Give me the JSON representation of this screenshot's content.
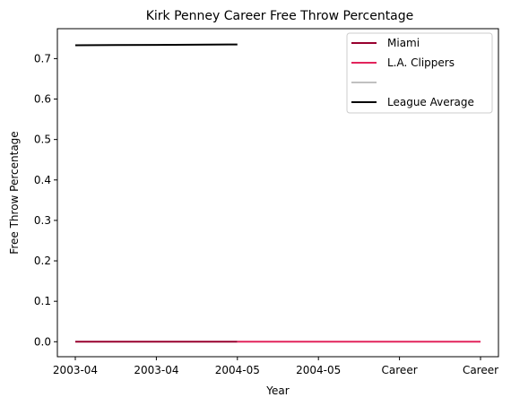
{
  "chart_data": {
    "type": "line",
    "title": "Kirk Penney Career Free Throw Percentage",
    "xlabel": "Year",
    "ylabel": "Free Throw Percentage",
    "x_tick_labels": [
      "2003-04",
      "2003-04",
      "2004-05",
      "2004-05",
      "Career",
      "Career"
    ],
    "ylim": [
      -0.037,
      0.774
    ],
    "y_ticks": [
      0.0,
      0.1,
      0.2,
      0.3,
      0.4,
      0.5,
      0.6,
      0.7
    ],
    "y_tick_labels": [
      "0.0",
      "0.1",
      "0.2",
      "0.3",
      "0.4",
      "0.5",
      "0.6",
      "0.7"
    ],
    "grid": false,
    "legend_position": "top-right",
    "series": [
      {
        "name": "Miami",
        "color": "#98002e",
        "x": [
          0,
          1,
          2
        ],
        "y": [
          0.0,
          0.0,
          0.0
        ]
      },
      {
        "name": "L.A. Clippers",
        "color": "#e2245c",
        "x": [
          2,
          3,
          4,
          5
        ],
        "y": [
          0.0,
          0.0,
          0.0,
          0.0
        ]
      },
      {
        "name": "",
        "color": "#c0c0c0",
        "x": [],
        "y": []
      },
      {
        "name": "League Average",
        "color": "#000000",
        "x": [
          0,
          1,
          2
        ],
        "y": [
          0.733,
          0.734,
          0.735
        ]
      }
    ]
  }
}
